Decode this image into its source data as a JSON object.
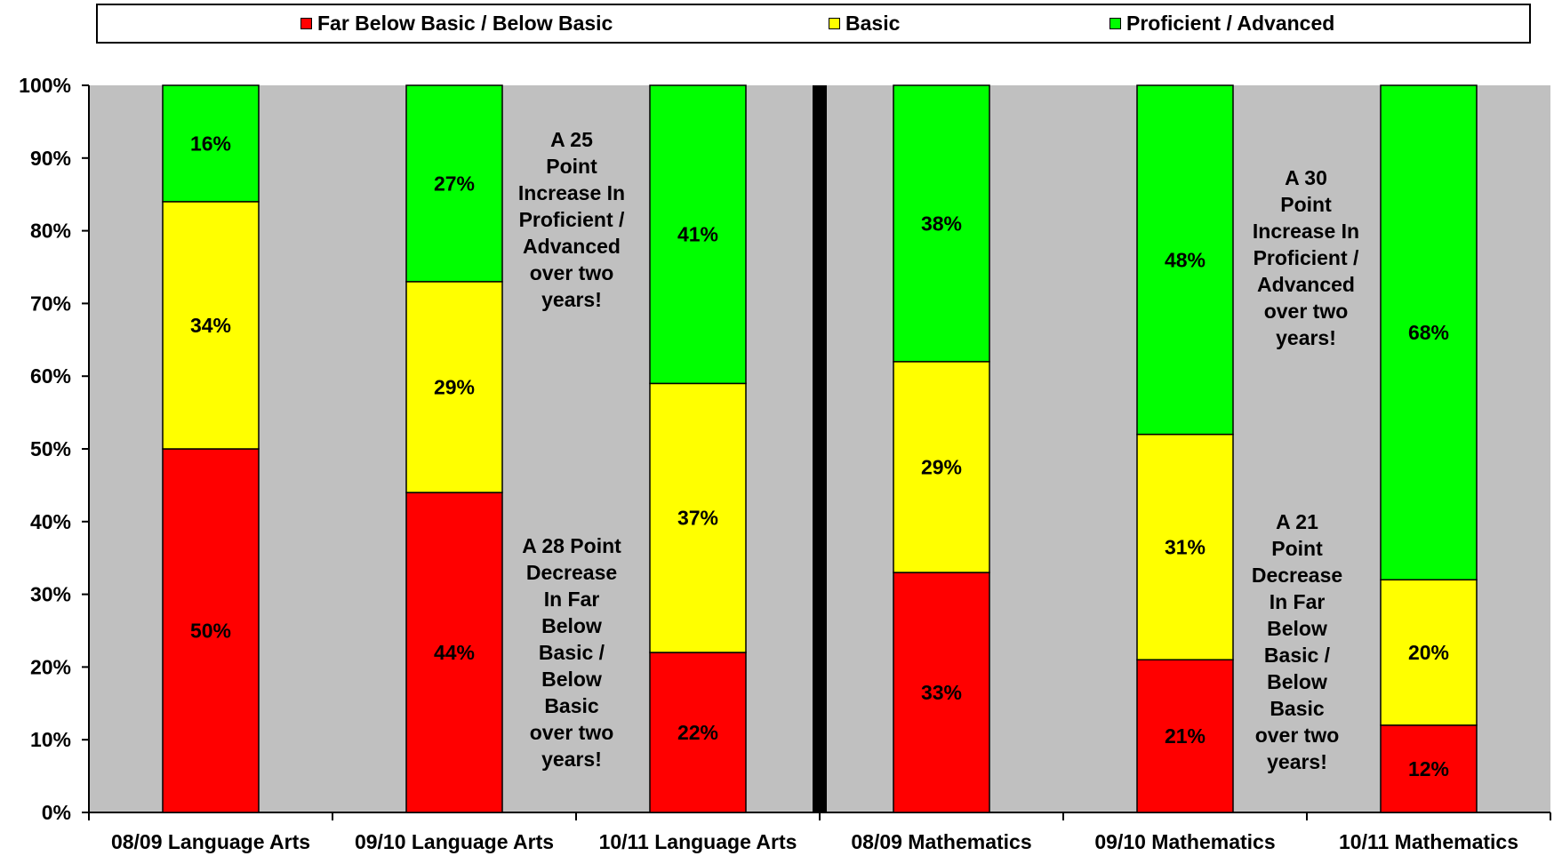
{
  "chart_data": {
    "type": "bar",
    "stacked": true,
    "categories": [
      "08/09 Language Arts",
      "09/10 Language Arts",
      "10/11 Language Arts",
      "08/09 Mathematics",
      "09/10 Mathematics",
      "10/11 Mathematics"
    ],
    "series": [
      {
        "name": "Far Below Basic / Below Basic",
        "color": "#ff0000",
        "values": [
          50,
          44,
          22,
          33,
          21,
          12
        ]
      },
      {
        "name": "Basic",
        "color": "#ffff00",
        "values": [
          34,
          29,
          37,
          29,
          31,
          20
        ]
      },
      {
        "name": "Proficient / Advanced",
        "color": "#00ff00",
        "values": [
          16,
          27,
          41,
          38,
          48,
          68
        ]
      }
    ],
    "ylim": [
      0,
      100
    ],
    "yticks": [
      "0%",
      "10%",
      "20%",
      "30%",
      "40%",
      "50%",
      "60%",
      "70%",
      "80%",
      "90%",
      "100%"
    ],
    "legend_position": "top",
    "plot_background": "#c0c0c0",
    "annotations": [
      "A 25 Point Increase In Proficient / Advanced over two years!",
      "A 28 Point Decrease In Far Below Basic / Below Basic over two years!",
      "A 30 Point Increase In Proficient / Advanced over two years!",
      "A 21 Point Decrease In Far Below Basic / Below Basic over two years!"
    ]
  }
}
